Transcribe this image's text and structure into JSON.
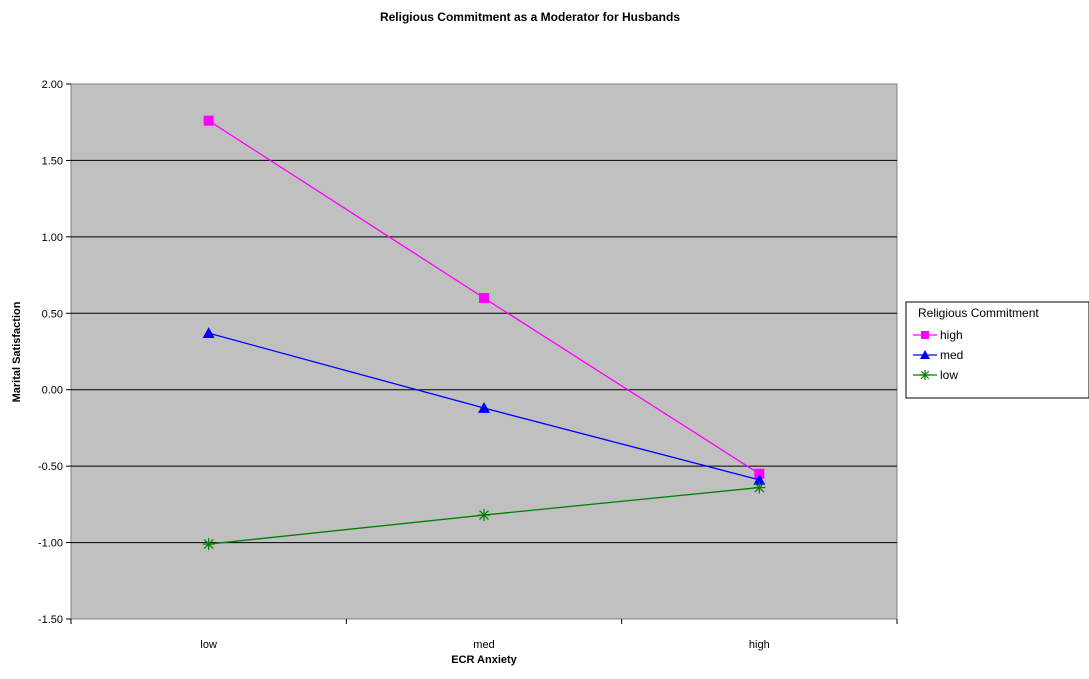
{
  "chart_data": {
    "type": "line",
    "title": "Religious Commitment as a Moderator for Husbands",
    "xlabel": "ECR Anxiety",
    "ylabel": "Marital Satisfaction",
    "categories": [
      "low",
      "med",
      "high"
    ],
    "ylim": [
      -1.5,
      2.0
    ],
    "yticks": [
      "2.00",
      "1.50",
      "1.00",
      "0.50",
      "0.00",
      "-0.50",
      "-1.00",
      "-1.50"
    ],
    "grid": true,
    "legend": {
      "title": "Religious Commitment",
      "placement": "right"
    },
    "series": [
      {
        "name": "high",
        "values": [
          1.76,
          0.6,
          -0.55
        ],
        "color": "#FF00FF",
        "marker": "square"
      },
      {
        "name": "med",
        "values": [
          0.37,
          -0.12,
          -0.59
        ],
        "color": "#0000FF",
        "marker": "triangle"
      },
      {
        "name": "low",
        "values": [
          -1.01,
          -0.82,
          -0.64
        ],
        "color": "#008000",
        "marker": "star"
      }
    ],
    "plot_background": "#C0C0C0"
  }
}
